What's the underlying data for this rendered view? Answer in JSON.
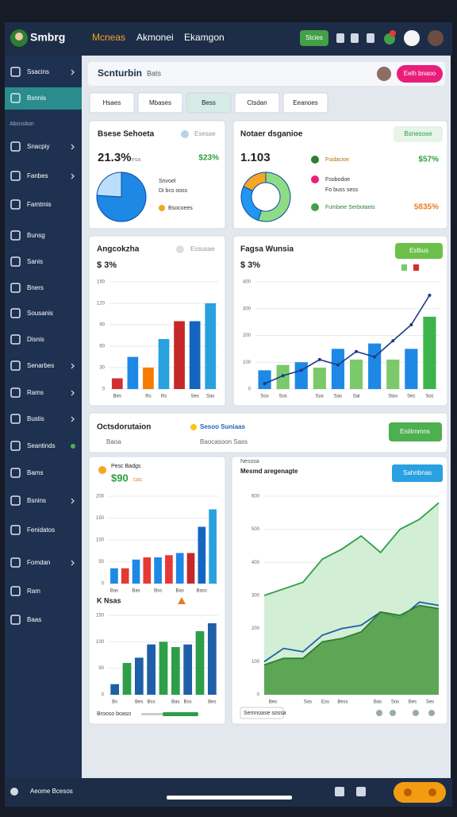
{
  "topbar": {
    "logo": "Smbrg",
    "nav": [
      "Mcneas",
      "Akmonei",
      "Ekamgon"
    ],
    "button": "Stcies"
  },
  "sidebar": {
    "section": "Abcnsiton",
    "items": [
      "Ssacins",
      "Bsnnis",
      "Snacpiy",
      "Fanbes",
      "Famtmis",
      "Bunsg",
      "Sanis",
      "Bners",
      "Sousanis",
      "Disnis",
      "Senarbes",
      "Rams",
      "Bustis",
      "Seantinds",
      "Bams",
      "Bsnins",
      "Fenidatos",
      "Fomdan",
      "Ram",
      "Baas"
    ]
  },
  "header": {
    "title": "Scnturbin",
    "subtitle": "Bats",
    "button": "Eelh bnaoo"
  },
  "tabs": [
    "Hsaes",
    "Mbases",
    "Bess",
    "Ctsdan",
    "Eeanoes"
  ],
  "cards": [
    {
      "title": "Bsese Sehoeta",
      "tag": "Esesae",
      "value": "21.3%",
      "note": "esa",
      "change": "$23%",
      "legend": [
        "Snvoel",
        "Di bcs ooss",
        "Bsocoees"
      ]
    },
    {
      "title": "Notaer dsganioe",
      "button": "Bsnesose",
      "value": "1.103",
      "legend": [
        "Fsidacioe",
        "Fsobodoe",
        "Fo buss sess",
        "Fumbeie Serbotaeis"
      ],
      "figures": [
        "$57%",
        "5835%"
      ]
    },
    {
      "title": "Angcokzha",
      "tag": "Essusae",
      "value": "$ 3%"
    },
    {
      "title": "Fagsa Wunsia",
      "value": "$ 3%",
      "button": "Eslbus"
    },
    {
      "title": "Octsdorutaion",
      "subtitle": "Baoa",
      "tag": "Sesoo Suniaas",
      "note": "Baocasoon Sass",
      "button": "Eniitrnmns"
    },
    {
      "title": "Pesc Badgs",
      "value": "$90",
      "note": "cas",
      "title2": "K Nsas",
      "footer": "Brooso boaso"
    },
    {
      "title": "Nesosa",
      "subtitle": "Mesmd aregenagte",
      "button": "Sahnbnas",
      "footer": "Semnoase sossa"
    }
  ],
  "bottombar": {
    "label": "Aeome Bcesos"
  },
  "chart_data": [
    {
      "type": "pie",
      "values": [
        76,
        24
      ],
      "colors": [
        "#1e88e5",
        "#bbdefb"
      ]
    },
    {
      "type": "donut",
      "values": [
        55,
        27,
        18
      ],
      "colors": [
        "#8fdc86",
        "#2196f3",
        "#f5a623"
      ]
    },
    {
      "type": "bar",
      "categories": [
        "Bes",
        null,
        "Rs",
        "Rs",
        null,
        "Ses",
        "Sas"
      ],
      "values": [
        15,
        45,
        30,
        70,
        95,
        95,
        120
      ],
      "colors": [
        "#d32f2f",
        "#1e88e5",
        "#f57c00",
        "#29a0e0",
        "#c62828",
        "#1565c0",
        "#29a0e0"
      ],
      "ylim": [
        0,
        150
      ],
      "yticks": [
        0,
        30,
        60,
        90,
        120,
        150
      ],
      "grid": true
    },
    {
      "type": "combo",
      "categories": [
        "Sos",
        "Sos",
        null,
        "Sus",
        "Sas",
        "Sai",
        null,
        "Stos",
        "Sec",
        "Soc"
      ],
      "values": [
        70,
        90,
        100,
        80,
        150,
        110,
        170,
        110,
        150,
        270
      ],
      "colors": [
        "#1e88e5",
        "#7cc96b",
        "#1e88e5",
        "#7cc96b",
        "#1e88e5",
        "#7cc96b",
        "#1e88e5",
        "#7cc96b",
        "#1e88e5",
        "#3cb44b"
      ],
      "line_values": [
        20,
        50,
        70,
        110,
        90,
        140,
        120,
        180,
        240,
        350
      ],
      "line_color": "#1a3a8a",
      "ylim": [
        0,
        400
      ],
      "yticks": [
        0,
        100,
        200,
        300,
        400
      ],
      "grid": true
    },
    {
      "type": "bar",
      "categories": [
        "Bas",
        null,
        "Bas",
        null,
        "Bss",
        null,
        "Bas",
        null,
        "Bass",
        null
      ],
      "values": [
        35,
        35,
        55,
        60,
        60,
        65,
        70,
        70,
        130,
        170
      ],
      "colors": [
        "#1e88e5",
        "#e53935",
        "#1e88e5",
        "#e53935",
        "#1e88e5",
        "#e53935",
        "#1e88e5",
        "#c62828",
        "#1565c0",
        "#29a0e0"
      ],
      "ylim": [
        0,
        200
      ],
      "yticks": [
        0,
        50,
        100,
        150,
        200
      ],
      "grid": true
    },
    {
      "type": "bar",
      "categories": [
        "Bs",
        null,
        "Bes",
        "Bss",
        null,
        "Bas",
        "Bss",
        null,
        "Bes"
      ],
      "values": [
        20,
        60,
        70,
        95,
        100,
        90,
        95,
        120,
        135
      ],
      "colors": [
        "#1e5fa8",
        "#2e9e48",
        "#1e5fa8",
        "#1e5fa8",
        "#2e9e48",
        "#2e9e48",
        "#1e5fa8",
        "#2e9e48",
        "#1e5fa8"
      ],
      "ylim": [
        0,
        150
      ],
      "yticks": [
        0,
        50,
        100,
        150
      ],
      "grid": true
    },
    {
      "type": "area",
      "categories": [
        "Bes",
        null,
        "Sos",
        "Ess",
        "Bess",
        null,
        "Bas",
        "Sos",
        "Bes",
        "Ses"
      ],
      "series": [
        {
          "values": [
            300,
            320,
            340,
            410,
            440,
            480,
            430,
            500,
            530,
            580
          ],
          "color": "#2e9e48",
          "fill": "#cdeccf"
        },
        {
          "values": [
            100,
            140,
            130,
            180,
            200,
            210,
            250,
            230,
            280,
            270
          ],
          "color": "#1e5fa8",
          "fill": "none"
        },
        {
          "values": [
            90,
            110,
            110,
            160,
            170,
            190,
            250,
            240,
            270,
            260
          ],
          "color": "#2e7d32",
          "fill": "#4f9d48"
        }
      ],
      "ylim": [
        0,
        600
      ],
      "yticks": [
        0,
        100,
        200,
        300,
        400,
        500,
        600
      ],
      "grid": true
    }
  ]
}
